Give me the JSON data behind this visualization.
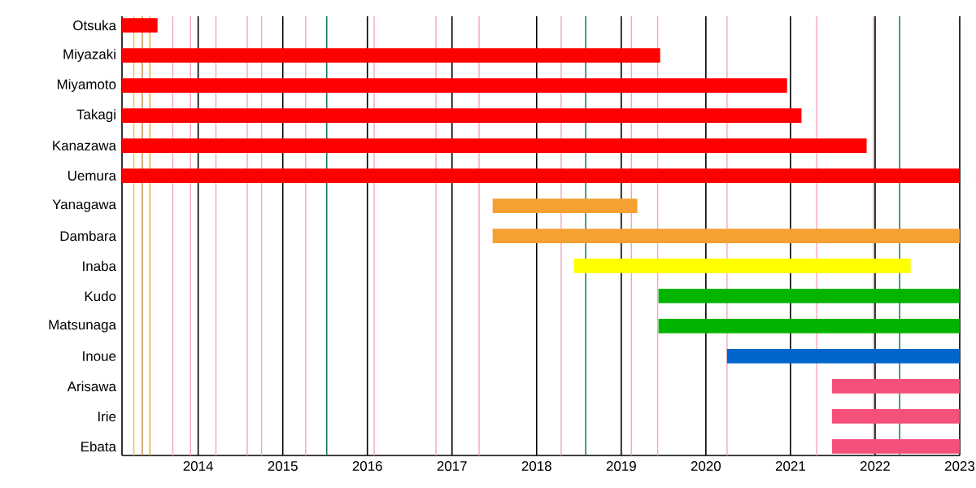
{
  "chart_data": {
    "type": "bar",
    "orientation": "horizontal",
    "categories": [
      "Otsuka",
      "Miyazaki",
      "Miyamoto",
      "Takagi",
      "Kanazawa",
      "Uemura",
      "Yanagawa",
      "Dambara",
      "Inaba",
      "Kudo",
      "Matsunaga",
      "Inoue",
      "Arisawa",
      "Irie",
      "Ebata"
    ],
    "base": [
      2013.1,
      2013.1,
      2013.1,
      2013.1,
      2013.1,
      2013.1,
      2017.48,
      2017.48,
      2018.44,
      2019.44,
      2019.44,
      2020.25,
      2021.49,
      2021.49,
      2021.49
    ],
    "values": [
      0.42,
      6.36,
      7.86,
      8.03,
      8.8,
      9.9,
      1.71,
      5.52,
      3.98,
      3.56,
      3.56,
      2.75,
      1.51,
      1.51,
      1.51
    ],
    "colors": [
      "#ff0000",
      "#ff0000",
      "#ff0000",
      "#ff0000",
      "#ff0000",
      "#ff0000",
      "#f5a030",
      "#f5a030",
      "#ffff00",
      "#00b400",
      "#00b400",
      "#0066cc",
      "#f5507a",
      "#f5507a",
      "#f5507a"
    ],
    "xlim": [
      2013.1,
      2023
    ],
    "xticks": [
      2014,
      2015,
      2016,
      2017,
      2018,
      2019,
      2020,
      2021,
      2022,
      2023
    ],
    "grid": "x",
    "ref_lines": [
      {
        "axis": "x",
        "value": 2013.24,
        "color": "#f5c040"
      },
      {
        "axis": "x",
        "value": 2013.34,
        "color": "#c88a40"
      },
      {
        "axis": "x",
        "value": 2013.43,
        "color": "#f5a030"
      },
      {
        "axis": "x",
        "value": 2013.7,
        "color": "#f4a6b8"
      },
      {
        "axis": "x",
        "value": 2013.91,
        "color": "#f4a6b8"
      },
      {
        "axis": "x",
        "value": 2014.21,
        "color": "#f4a6b8"
      },
      {
        "axis": "x",
        "value": 2014.58,
        "color": "#f4a6b8"
      },
      {
        "axis": "x",
        "value": 2014.75,
        "color": "#f4a6b8"
      },
      {
        "axis": "x",
        "value": 2015.27,
        "color": "#f4a6b8"
      },
      {
        "axis": "x",
        "value": 2015.52,
        "color": "#006a4e"
      },
      {
        "axis": "x",
        "value": 2016.08,
        "color": "#f4a6b8"
      },
      {
        "axis": "x",
        "value": 2016.81,
        "color": "#f4a6b8"
      },
      {
        "axis": "x",
        "value": 2017.32,
        "color": "#f4a6b8"
      },
      {
        "axis": "x",
        "value": 2018.29,
        "color": "#f4a6b8"
      },
      {
        "axis": "x",
        "value": 2018.58,
        "color": "#006a4e"
      },
      {
        "axis": "x",
        "value": 2019.12,
        "color": "#f4a6b8"
      },
      {
        "axis": "x",
        "value": 2019.43,
        "color": "#f4a6b8"
      },
      {
        "axis": "x",
        "value": 2020.25,
        "color": "#f4a6b8"
      },
      {
        "axis": "x",
        "value": 2021.31,
        "color": "#f4a6b8"
      },
      {
        "axis": "x",
        "value": 2021.98,
        "color": "#f4a6b8"
      },
      {
        "axis": "x",
        "value": 2022.29,
        "color": "#006a4e"
      }
    ]
  }
}
